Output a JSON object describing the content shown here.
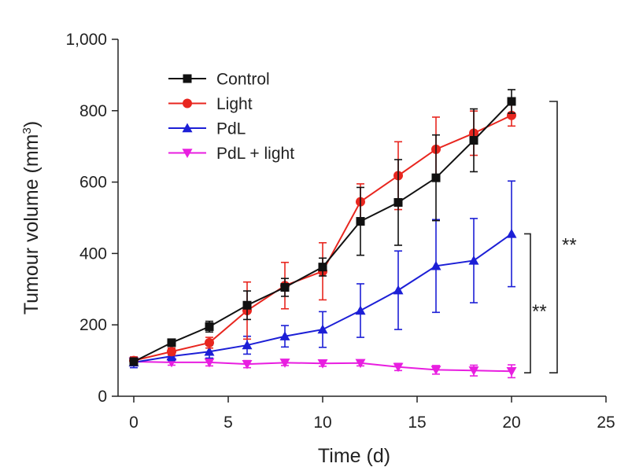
{
  "chart_data": {
    "type": "line",
    "title": "",
    "xlabel": "Time (d)",
    "ylabel": "Tumour volume (mm",
    "ylabel_sup": "3",
    "ylabel_close": ")",
    "xlim": [
      -0.5,
      25
    ],
    "ylim": [
      0,
      1000
    ],
    "xticks": [
      0,
      5,
      10,
      15,
      20,
      25
    ],
    "xtick_labels": [
      "0",
      "5",
      "10",
      "15",
      "20",
      "25"
    ],
    "yticks": [
      0,
      200,
      400,
      600,
      800,
      1000
    ],
    "ytick_labels": [
      "0",
      "200",
      "400",
      "600",
      "800",
      "1,000"
    ],
    "grid": false,
    "legend_position": "top-left",
    "x": [
      0,
      2,
      4,
      6,
      8,
      10,
      12,
      14,
      16,
      18,
      20
    ],
    "series": [
      {
        "name": "Control",
        "color": "#111111",
        "marker": "square",
        "values": [
          97,
          150,
          195,
          255,
          305,
          362,
          490,
          543,
          612,
          717,
          826
        ],
        "errors": [
          10,
          8,
          15,
          40,
          25,
          25,
          95,
          120,
          120,
          88,
          33
        ]
      },
      {
        "name": "Light",
        "color": "#e8261f",
        "marker": "circle",
        "values": [
          100,
          125,
          150,
          240,
          310,
          350,
          545,
          618,
          692,
          737,
          787
        ],
        "errors": [
          10,
          10,
          15,
          80,
          65,
          80,
          50,
          95,
          90,
          62,
          30
        ]
      },
      {
        "name": "PdL",
        "color": "#1c1fd6",
        "marker": "triangle-up",
        "values": [
          95,
          112,
          125,
          143,
          168,
          187,
          240,
          297,
          365,
          380,
          455
        ],
        "errors": [
          15,
          12,
          18,
          25,
          30,
          50,
          75,
          110,
          130,
          118,
          148
        ]
      },
      {
        "name": "PdL + light",
        "color": "#e81ee0",
        "marker": "triangle-down",
        "values": [
          97,
          95,
          95,
          90,
          94,
          92,
          93,
          82,
          74,
          72,
          70
        ],
        "errors": [
          8,
          8,
          10,
          10,
          8,
          8,
          8,
          10,
          12,
          15,
          18
        ]
      }
    ],
    "annotations": [
      {
        "label": "**",
        "from_series": "Control",
        "to_series": "PdL + light",
        "at_x": 20
      },
      {
        "label": "**",
        "from_series": "PdL",
        "to_series": "PdL + light",
        "at_x": 20
      }
    ]
  }
}
